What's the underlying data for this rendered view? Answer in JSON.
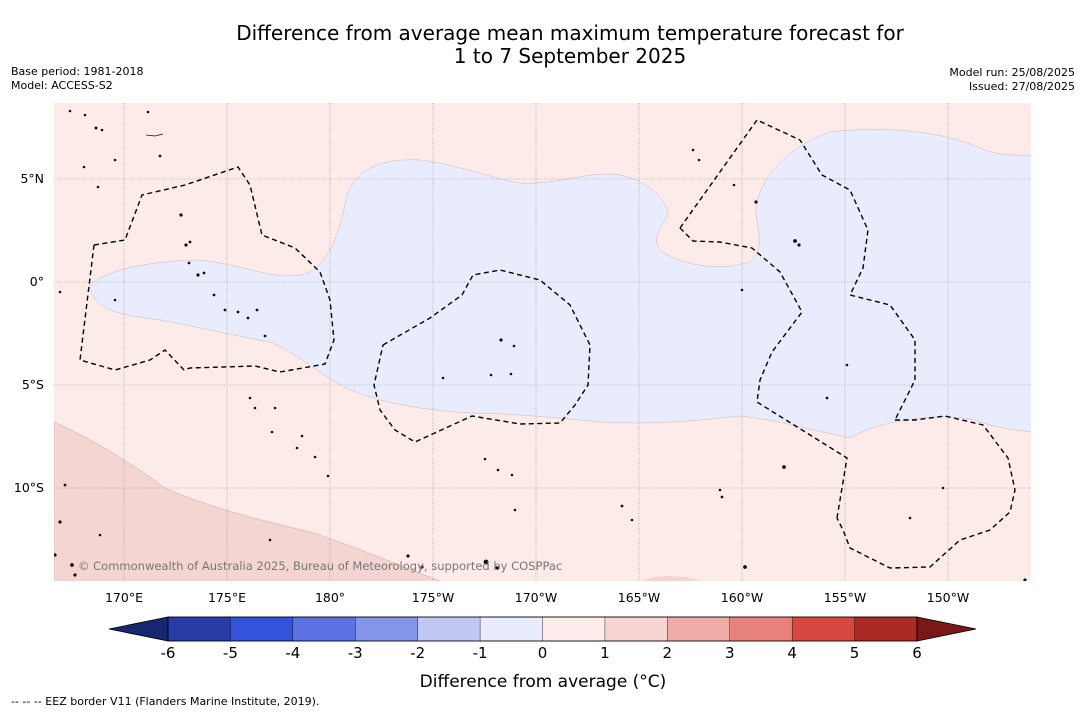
{
  "title_line1": "Difference from average mean maximum temperature forecast for",
  "title_line2": "1 to 7 September 2025",
  "base_period": "Base period: 1981-2018",
  "model": "Model: ACCESS-S2",
  "model_run": "Model run: 25/08/2025",
  "issued": "Issued: 27/08/2025",
  "lat_labels": [
    "5°N",
    "0°",
    "5°S",
    "10°S"
  ],
  "lon_labels": [
    "170°E",
    "175°E",
    "180°",
    "175°W",
    "170°W",
    "165°W",
    "160°W",
    "155°W",
    "150°W"
  ],
  "copyright": "© Commonwealth of Australia 2025, Bureau of Meteorology, supported by COSPPac",
  "colorbar": {
    "ticks": [
      "-6",
      "-5",
      "-4",
      "-3",
      "-2",
      "-1",
      "0",
      "1",
      "2",
      "3",
      "4",
      "5",
      "6"
    ],
    "colors": [
      "#283ca8",
      "#3552dc",
      "#5c72e2",
      "#8596e8",
      "#bfc7f2",
      "#e9ecfc",
      "#fcedec",
      "#f5d4d2",
      "#eeaca8",
      "#e6827b",
      "#d84840",
      "#ab2a25"
    ],
    "under_color": "#162770",
    "over_color": "#7a1818",
    "label": "Difference from average (°C)"
  },
  "colors": {
    "anomaly_0_to_1": "#fcebe9",
    "anomaly_neg1_to_0": "#e9ecfc",
    "anomaly_1_to_2": "#f5d5d2"
  },
  "footnote": "--  --  -- EEZ border V11 (Flanders Marine Institute, 2019)."
}
